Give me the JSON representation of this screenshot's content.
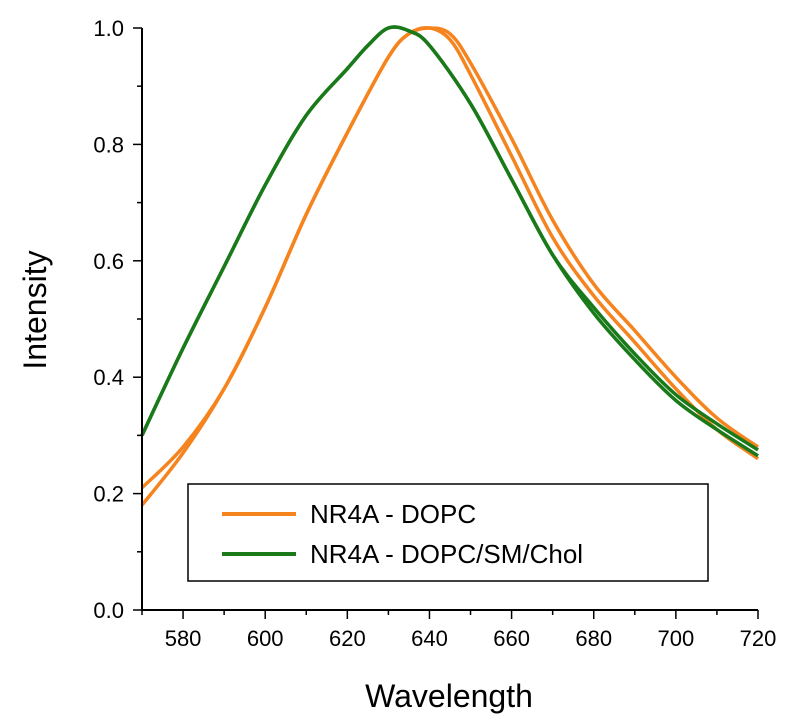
{
  "chart_data": {
    "type": "line",
    "title": "",
    "xlabel": "Wavelength",
    "ylabel": "Intensity",
    "xlim": [
      570,
      720
    ],
    "ylim": [
      0.0,
      1.0
    ],
    "x_ticks": [
      "580",
      "600",
      "620",
      "640",
      "660",
      "680",
      "700",
      "720"
    ],
    "y_ticks": [
      "0.0",
      "0.2",
      "0.4",
      "0.6",
      "0.8",
      "1.0"
    ],
    "grid": false,
    "legend": {
      "placement": "bottom-center",
      "entries": [
        {
          "label": "NR4A - DOPC",
          "color": "#F5841F"
        },
        {
          "label": "NR4A - DOPC/SM/Chol",
          "color": "#1A7A1A"
        }
      ]
    },
    "series": [
      {
        "group": 0,
        "color": "#F5841F",
        "x": [
          570,
          580,
          590,
          600,
          610,
          620,
          630,
          635,
          640,
          645,
          650,
          660,
          670,
          680,
          690,
          700,
          710,
          720
        ],
        "values": [
          0.18,
          0.27,
          0.38,
          0.52,
          0.68,
          0.82,
          0.95,
          0.99,
          1.0,
          0.98,
          0.92,
          0.78,
          0.64,
          0.54,
          0.46,
          0.38,
          0.31,
          0.26
        ]
      },
      {
        "group": 0,
        "color": "#F5841F",
        "x": [
          570,
          580,
          590,
          600,
          610,
          620,
          630,
          635,
          640,
          645,
          650,
          660,
          670,
          680,
          690,
          700,
          710,
          720
        ],
        "values": [
          0.21,
          0.28,
          0.38,
          0.52,
          0.68,
          0.82,
          0.95,
          0.99,
          1.0,
          0.99,
          0.94,
          0.81,
          0.67,
          0.56,
          0.48,
          0.4,
          0.33,
          0.28
        ]
      },
      {
        "group": 1,
        "color": "#1A7A1A",
        "x": [
          570,
          580,
          590,
          600,
          610,
          620,
          625,
          630,
          635,
          640,
          650,
          660,
          670,
          680,
          690,
          700,
          710,
          720
        ],
        "values": [
          0.3,
          0.45,
          0.59,
          0.73,
          0.85,
          0.93,
          0.97,
          1.0,
          0.995,
          0.97,
          0.87,
          0.74,
          0.61,
          0.51,
          0.43,
          0.36,
          0.31,
          0.265
        ]
      },
      {
        "group": 1,
        "color": "#1A7A1A",
        "x": [
          570,
          580,
          590,
          600,
          610,
          620,
          625,
          630,
          635,
          640,
          650,
          660,
          670,
          680,
          690,
          700,
          710,
          720
        ],
        "values": [
          0.3,
          0.45,
          0.59,
          0.73,
          0.85,
          0.93,
          0.97,
          1.0,
          0.995,
          0.97,
          0.87,
          0.74,
          0.61,
          0.52,
          0.44,
          0.37,
          0.32,
          0.275
        ]
      }
    ]
  }
}
